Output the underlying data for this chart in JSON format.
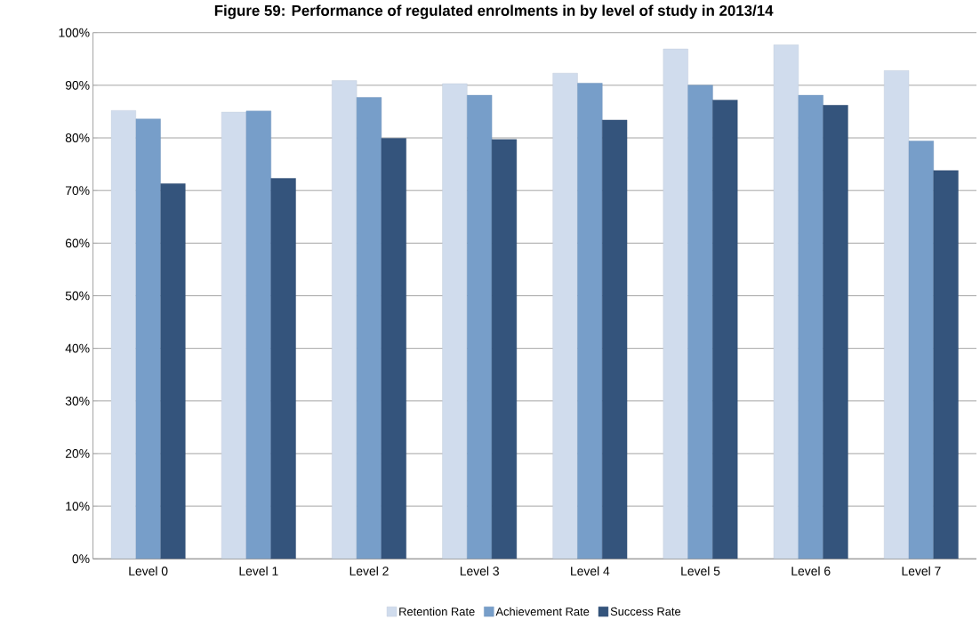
{
  "chart_data": {
    "type": "bar",
    "title": "Figure 59: Performance of regulated enrolments in by level of study in 2013/14",
    "categories": [
      "Level 0",
      "Level 1",
      "Level 2",
      "Level 3",
      "Level 4",
      "Level 5",
      "Level 6",
      "Level 7"
    ],
    "series": [
      {
        "name": "Retention Rate",
        "color": "#d0dced",
        "values": [
          85.2,
          84.9,
          90.9,
          90.3,
          92.3,
          96.9,
          97.7,
          92.8
        ]
      },
      {
        "name": "Achievement Rate",
        "color": "#779ec9",
        "values": [
          83.6,
          85.1,
          87.7,
          88.1,
          90.4,
          90.0,
          88.1,
          79.4
        ]
      },
      {
        "name": "Success Rate",
        "color": "#34547c",
        "values": [
          71.3,
          72.3,
          79.9,
          79.7,
          83.4,
          87.2,
          86.2,
          73.8
        ]
      }
    ],
    "ylim": [
      0,
      100
    ],
    "yticks": [
      {
        "value": 0,
        "label": "0%"
      },
      {
        "value": 10,
        "label": "10%"
      },
      {
        "value": 20,
        "label": "20%"
      },
      {
        "value": 30,
        "label": "30%"
      },
      {
        "value": 40,
        "label": "40%"
      },
      {
        "value": 50,
        "label": "50%"
      },
      {
        "value": 60,
        "label": "60%"
      },
      {
        "value": 70,
        "label": "70%"
      },
      {
        "value": 80,
        "label": "80%"
      },
      {
        "value": 90,
        "label": "90%"
      },
      {
        "value": 100,
        "label": "100%"
      }
    ],
    "grid": "y",
    "legend": "bottom"
  }
}
